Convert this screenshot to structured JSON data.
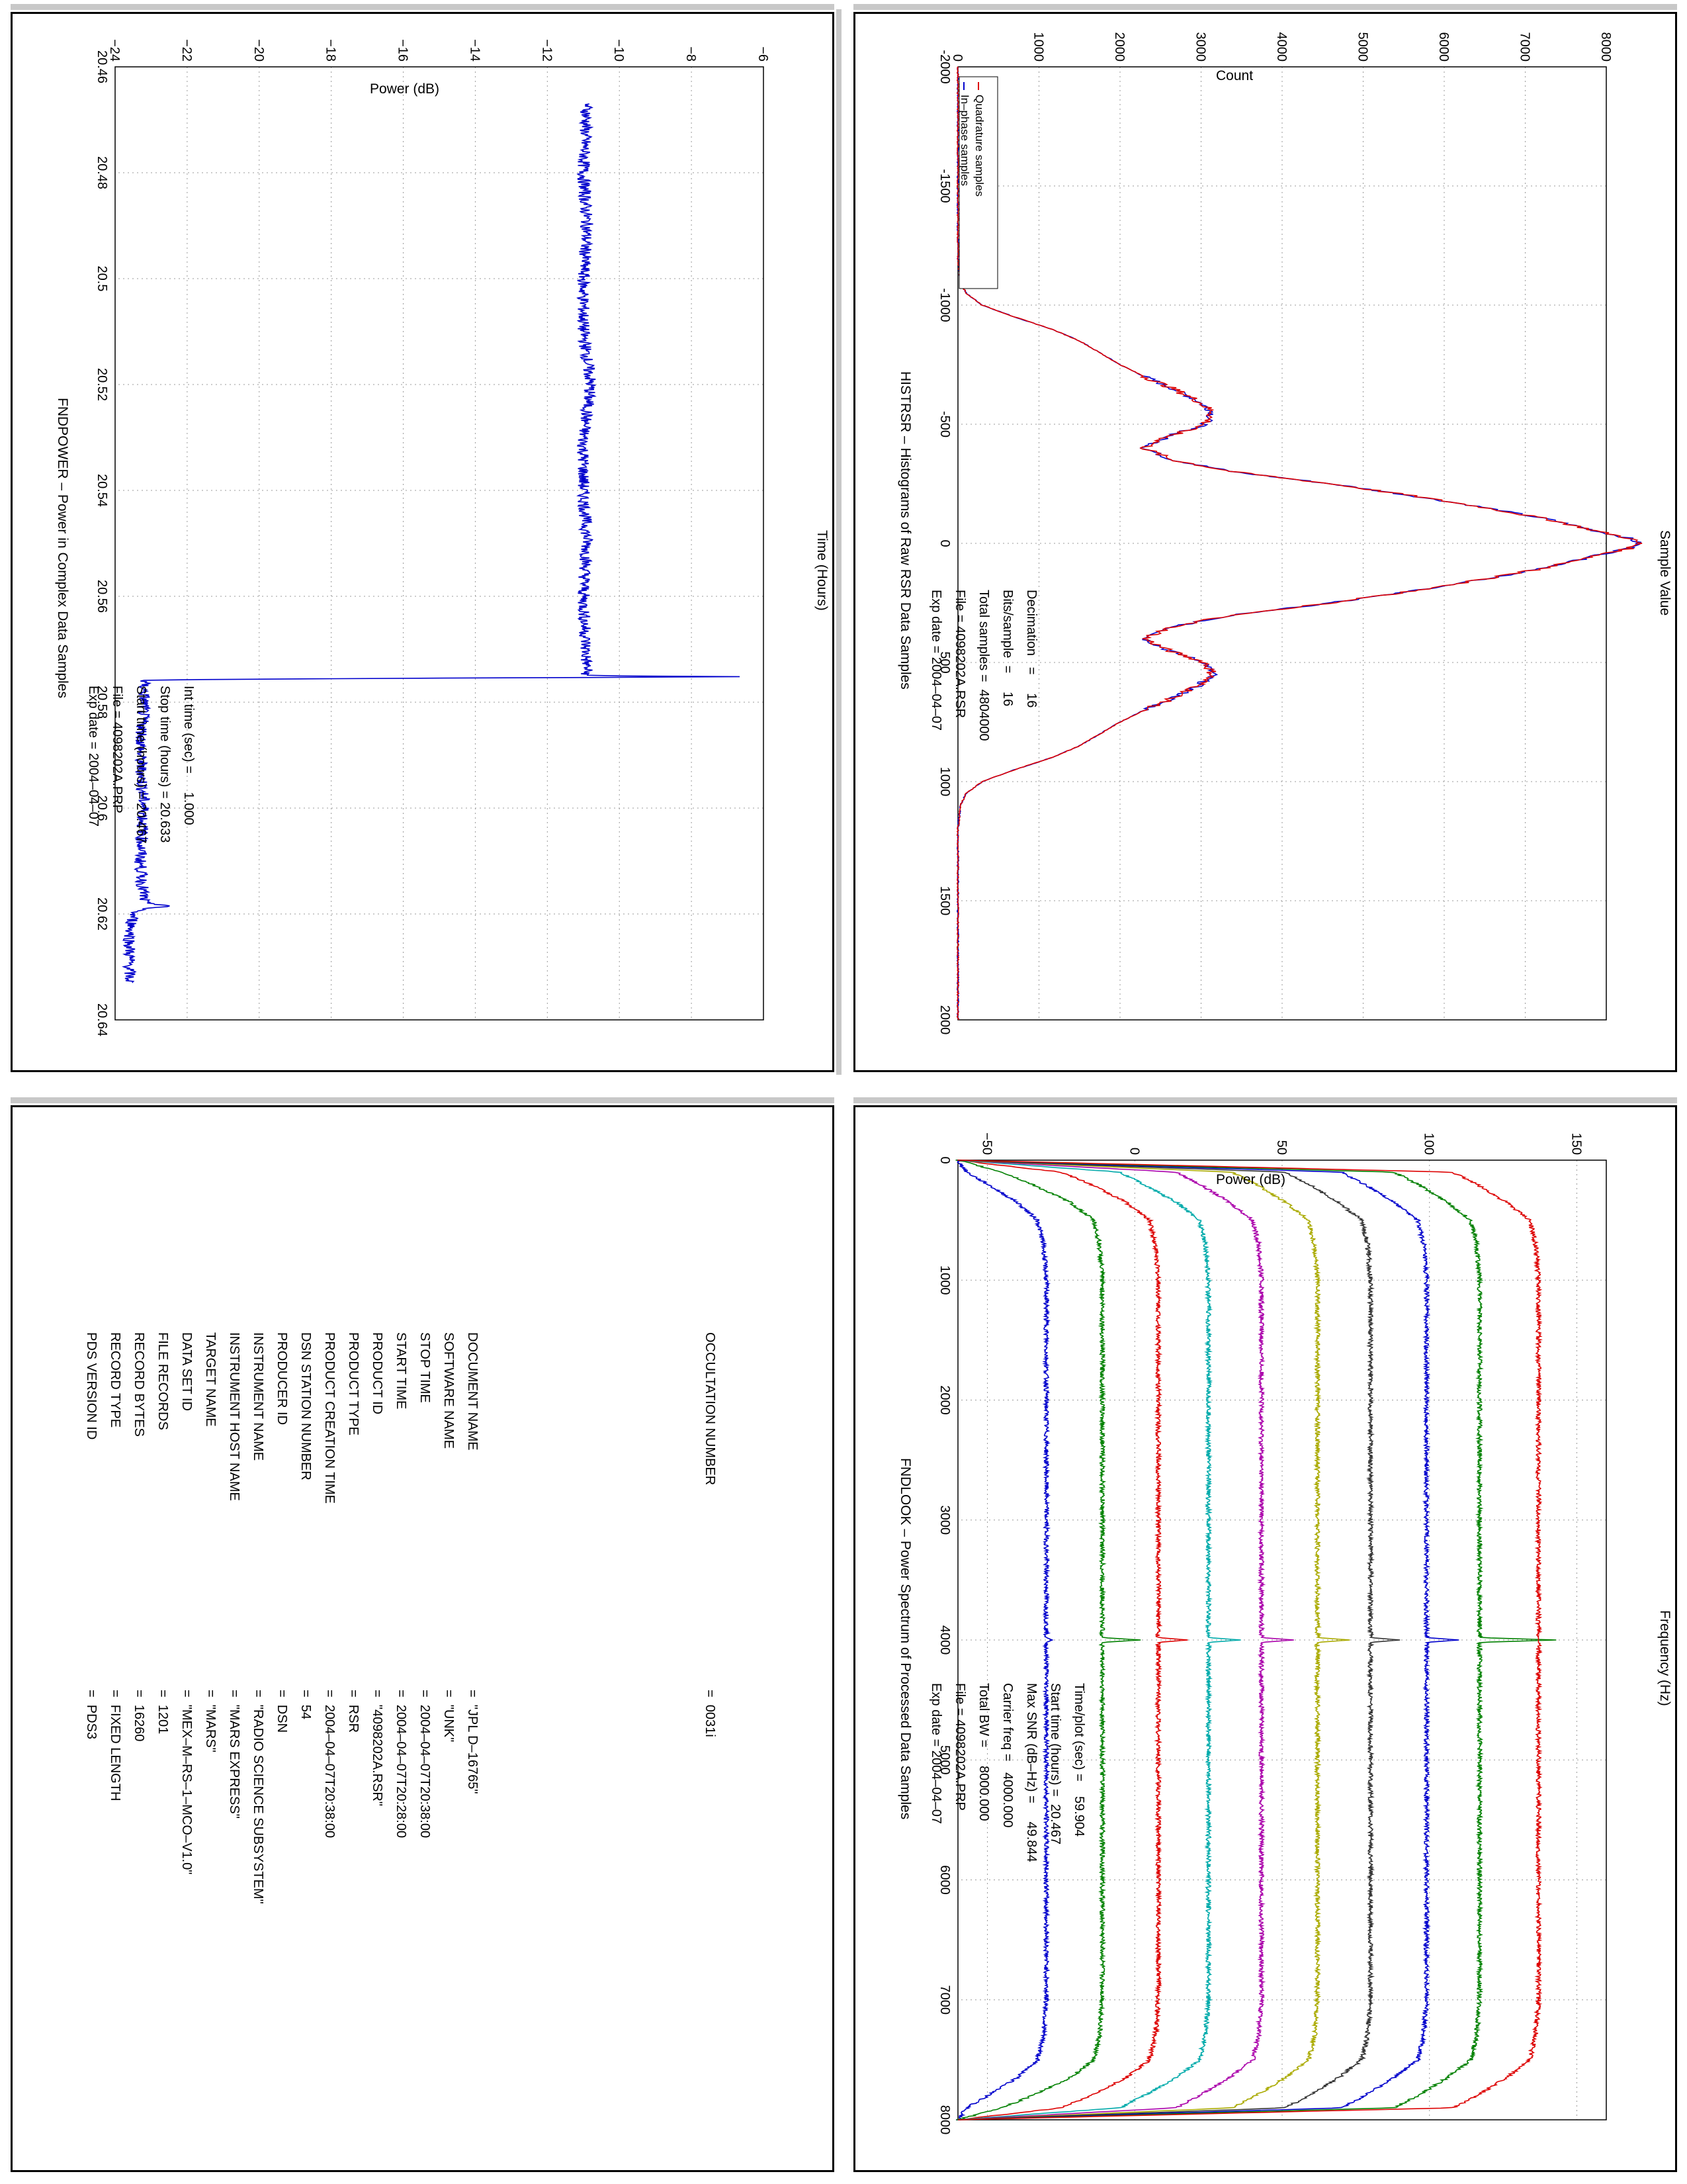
{
  "colors": {
    "inphase": "#0000cc",
    "quadrature": "#dd0000",
    "power_line": "#0000cc",
    "grid": "#9a9a9a"
  },
  "histogram": {
    "title": "HISTRSR – Histograms of Raw RSR Data Samples",
    "info_lines": [
      "Exp date = 2004–04–07",
      "File = 4098202A.RSR",
      "Total samples =  4804000",
      "Bits/sample  =     16",
      "Decimation   =     16"
    ],
    "legend": [
      "In–phase samples",
      "Quadrature samples"
    ]
  },
  "power": {
    "title": "FNDPOWER – Power in Complex Data Samples",
    "info_lines": [
      "Exp date = 2004–04–07",
      "File = 4098202A.PRP",
      "Start time (hours) = 20.467",
      "Stop time (hours) = 20.633",
      "Int time (sec) =     1.000"
    ]
  },
  "spectrum": {
    "title": "FNDLOOK – Power Spectrum of Processed Data Samples",
    "info_lines": [
      "Exp date = 2004–04–07",
      "File = 4098202A.PRP",
      "Total BW =     8000.000",
      "Carrier freq =   4000.000",
      "Max SNR (dB–Hz) =     49.844",
      "Start time (hours) =  20.467",
      "Time/plot (sec) =    59.904"
    ]
  },
  "label": {
    "rows": [
      {
        "key": "PDS VERSION ID",
        "value": "=  PDS3"
      },
      {
        "key": "RECORD TYPE",
        "value": "=  FIXED LENGTH"
      },
      {
        "key": "RECORD BYTES",
        "value": "=  16260"
      },
      {
        "key": "FILE RECORDS",
        "value": "=  1201"
      },
      {
        "key": "DATA SET ID",
        "value": "=  \"MEX–M–RS–1–MCO–V1.0\""
      },
      {
        "key": "TARGET NAME",
        "value": "=  \"MARS\""
      },
      {
        "key": "INSTRUMENT HOST NAME",
        "value": "=  \"MARS EXPRESS\""
      },
      {
        "key": "INSTRUMENT NAME",
        "value": "=  \"RADIO SCIENCE SUBSYSTEM\""
      },
      {
        "key": "PRODUCER ID",
        "value": "=  DSN"
      },
      {
        "key": "DSN STATION NUMBER",
        "value": "=  54"
      },
      {
        "key": "PRODUCT CREATION TIME",
        "value": "=  2004–04–07T20:38:00"
      },
      {
        "key": "PRODUCT TYPE",
        "value": "=  RSR"
      },
      {
        "key": "PRODUCT ID",
        "value": "=  \"4098202A.RSR\""
      },
      {
        "key": "START TIME",
        "value": "=  2004–04–07T20:28:00"
      },
      {
        "key": "STOP TIME",
        "value": "=  2004–04–07T20:38:00"
      },
      {
        "key": "SOFTWARE NAME",
        "value": "=  \"UNK\""
      },
      {
        "key": "DOCUMENT NAME",
        "value": "=  \"JPL D–16765\""
      }
    ],
    "occultation": {
      "key": "OCCULTATION NUMBER",
      "value": "=  0031i"
    }
  },
  "chart_data": [
    {
      "type": "line",
      "title": "HISTRSR – Histograms of Raw RSR Data Samples",
      "xlabel": "Sample Value",
      "ylabel": "Count",
      "xlim": [
        -2000,
        2000
      ],
      "ylim": [
        0,
        8000
      ],
      "xticks": [
        -2000,
        -1500,
        -1000,
        -500,
        0,
        500,
        1000,
        1500,
        2000
      ],
      "yticks": [
        0,
        1000,
        2000,
        3000,
        4000,
        5000,
        6000,
        7000,
        8000
      ],
      "grid": true,
      "legend_position": "top-left",
      "x": [
        -2000,
        -1200,
        -1100,
        -1050,
        -1000,
        -950,
        -900,
        -850,
        -800,
        -750,
        -700,
        -650,
        -600,
        -550,
        -500,
        -450,
        -400,
        -350,
        -300,
        -250,
        -200,
        -150,
        -100,
        -50,
        -20,
        0,
        20,
        50,
        100,
        150,
        200,
        250,
        300,
        350,
        400,
        450,
        500,
        550,
        600,
        650,
        700,
        750,
        800,
        850,
        900,
        950,
        1000,
        1050,
        1100,
        1200,
        2000
      ],
      "series": [
        {
          "name": "In–phase samples",
          "values": [
            0,
            0,
            30,
            100,
            300,
            700,
            1150,
            1500,
            1750,
            2000,
            2300,
            2650,
            2950,
            3150,
            3050,
            2600,
            2300,
            2650,
            3400,
            4600,
            5600,
            6500,
            7300,
            7900,
            8300,
            8400,
            8300,
            7900,
            7300,
            6500,
            5600,
            4600,
            3400,
            2650,
            2300,
            2600,
            3050,
            3150,
            2950,
            2650,
            2300,
            2000,
            1750,
            1500,
            1150,
            700,
            300,
            100,
            30,
            0,
            0
          ]
        },
        {
          "name": "Quadrature samples",
          "values": [
            0,
            0,
            30,
            100,
            300,
            700,
            1150,
            1500,
            1750,
            2000,
            2300,
            2650,
            2950,
            3150,
            3050,
            2600,
            2300,
            2650,
            3400,
            4600,
            5600,
            6500,
            7300,
            7900,
            8300,
            8400,
            8300,
            7900,
            7300,
            6500,
            5600,
            4600,
            3400,
            2650,
            2300,
            2600,
            3050,
            3150,
            2950,
            2650,
            2300,
            2000,
            1750,
            1500,
            1150,
            700,
            300,
            100,
            30,
            0,
            0
          ]
        }
      ]
    },
    {
      "type": "line",
      "title": "FNDPOWER – Power in Complex Data Samples",
      "xlabel": "Time (Hours)",
      "ylabel": "Power (dB)",
      "xlim": [
        20.46,
        20.64
      ],
      "ylim": [
        -24,
        -6
      ],
      "xticks": [
        20.46,
        20.48,
        20.5,
        20.52,
        20.54,
        20.56,
        20.58,
        20.6,
        20.62,
        20.64
      ],
      "yticks": [
        -24,
        -22,
        -20,
        -18,
        -16,
        -14,
        -12,
        -10,
        -8,
        -6
      ],
      "grid": true,
      "x": [
        20.467,
        20.48,
        20.49,
        20.5,
        20.51,
        20.52,
        20.53,
        20.54,
        20.55,
        20.56,
        20.575,
        20.5752,
        20.5755,
        20.5758,
        20.58,
        20.59,
        20.6,
        20.61,
        20.618,
        20.6185,
        20.619,
        20.62,
        20.625,
        20.633
      ],
      "series": [
        {
          "name": "",
          "values": [
            -10.9,
            -11.0,
            -10.9,
            -11.0,
            -11.0,
            -10.8,
            -11.0,
            -11.0,
            -10.9,
            -11.0,
            -10.9,
            -6.1,
            -16.5,
            -23.2,
            -23.2,
            -23.3,
            -23.2,
            -23.3,
            -23.2,
            -22.3,
            -23.3,
            -23.5,
            -23.6,
            -23.6
          ]
        }
      ]
    },
    {
      "type": "line",
      "title": "FNDLOOK – Power Spectrum of Processed Data Samples",
      "xlabel": "Frequency (Hz)",
      "ylabel": "Power (dB)",
      "xlim": [
        0,
        8000
      ],
      "ylim": [
        -60,
        160
      ],
      "xticks": [
        0,
        1000,
        2000,
        3000,
        4000,
        5000,
        6000,
        7000,
        8000
      ],
      "yticks": [
        -50,
        0,
        50,
        100,
        150
      ],
      "grid": true,
      "x": [
        0,
        100,
        200,
        350,
        500,
        700,
        1000,
        3980,
        4000,
        4020,
        7000,
        7300,
        7500,
        7650,
        7800,
        7900,
        8000
      ],
      "series": [
        {
          "name": "",
          "color": "#0000cc",
          "values": [
            -60,
            -57,
            -50,
            -40,
            -33,
            -31,
            -30,
            -30,
            -28,
            -30,
            -30,
            -31,
            -33,
            -40,
            -50,
            -57,
            -60
          ]
        },
        {
          "name": "",
          "color": "#008000",
          "values": [
            -60,
            -45,
            -35,
            -22,
            -14,
            -12,
            -11,
            -11,
            2,
            -11,
            -11,
            -12,
            -14,
            -22,
            -35,
            -45,
            -60
          ]
        },
        {
          "name": "",
          "color": "#dd0000",
          "values": [
            -60,
            -25,
            -15,
            -3,
            5,
            7,
            8,
            8,
            18,
            8,
            8,
            7,
            5,
            -3,
            -15,
            -25,
            -60
          ]
        },
        {
          "name": "",
          "color": "#00aaaa",
          "values": [
            -60,
            -5,
            3,
            14,
            22,
            24,
            25,
            25,
            36,
            25,
            25,
            24,
            22,
            14,
            3,
            -5,
            -60
          ]
        },
        {
          "name": "",
          "color": "#aa00aa",
          "values": [
            -60,
            14,
            22,
            32,
            40,
            42,
            43,
            43,
            54,
            43,
            43,
            42,
            40,
            32,
            22,
            14,
            -60
          ]
        },
        {
          "name": "",
          "color": "#aaaa00",
          "values": [
            -60,
            33,
            41,
            51,
            59,
            61,
            62,
            62,
            73,
            62,
            62,
            61,
            59,
            51,
            41,
            33,
            -60
          ]
        },
        {
          "name": "",
          "color": "#333333",
          "values": [
            -60,
            51,
            59,
            69,
            77,
            79,
            80,
            80,
            90,
            80,
            80,
            79,
            77,
            69,
            59,
            51,
            -60
          ]
        },
        {
          "name": "",
          "color": "#0000cc",
          "values": [
            -60,
            70,
            78,
            88,
            96,
            98,
            99,
            99,
            110,
            99,
            99,
            98,
            96,
            88,
            78,
            70,
            -60
          ]
        },
        {
          "name": "",
          "color": "#008000",
          "values": [
            -60,
            88,
            96,
            106,
            114,
            116,
            117,
            117,
            143,
            117,
            117,
            116,
            114,
            106,
            96,
            88,
            -60
          ]
        },
        {
          "name": "",
          "color": "#dd0000",
          "values": [
            -60,
            108,
            116,
            126,
            134,
            136,
            137,
            137,
            137,
            137,
            137,
            136,
            134,
            126,
            116,
            108,
            -60
          ]
        }
      ]
    }
  ]
}
